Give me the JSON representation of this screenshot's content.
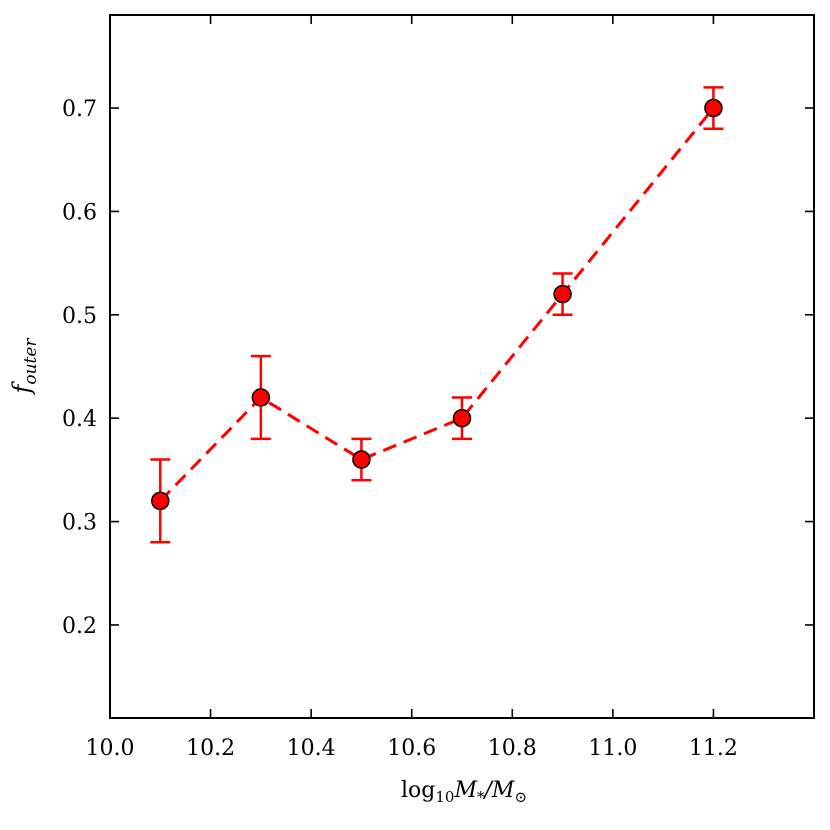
{
  "chart_data": {
    "type": "line",
    "title": "",
    "xlabel": {
      "prefix": "log",
      "prefix_sub": "10",
      "var1": "M",
      "var1_sub": "*",
      "slash": "/",
      "var2": "M",
      "var2_sub": "⊙"
    },
    "ylabel": {
      "var": "f",
      "var_sub": "outer"
    },
    "xlim": [
      10.0,
      11.4
    ],
    "ylim": [
      0.11,
      0.79
    ],
    "xticks": [
      10.0,
      10.2,
      10.4,
      10.6,
      10.8,
      11.0,
      11.2
    ],
    "xtick_labels": [
      "10.0",
      "10.2",
      "10.4",
      "10.6",
      "10.8",
      "11.0",
      "11.2"
    ],
    "yticks": [
      0.2,
      0.3,
      0.4,
      0.5,
      0.6,
      0.7
    ],
    "ytick_labels": [
      "0.2",
      "0.3",
      "0.4",
      "0.5",
      "0.6",
      "0.7"
    ],
    "grid": false,
    "series": [
      {
        "color": "#ff0000",
        "line_style": "dashed",
        "marker": "circle",
        "x": [
          10.1,
          10.3,
          10.5,
          10.7,
          10.9,
          11.2
        ],
        "y": [
          0.32,
          0.42,
          0.36,
          0.4,
          0.52,
          0.7
        ],
        "yerr_low": [
          0.28,
          0.38,
          0.34,
          0.38,
          0.5,
          0.68
        ],
        "yerr_high": [
          0.36,
          0.46,
          0.38,
          0.42,
          0.54,
          0.72
        ]
      }
    ]
  }
}
